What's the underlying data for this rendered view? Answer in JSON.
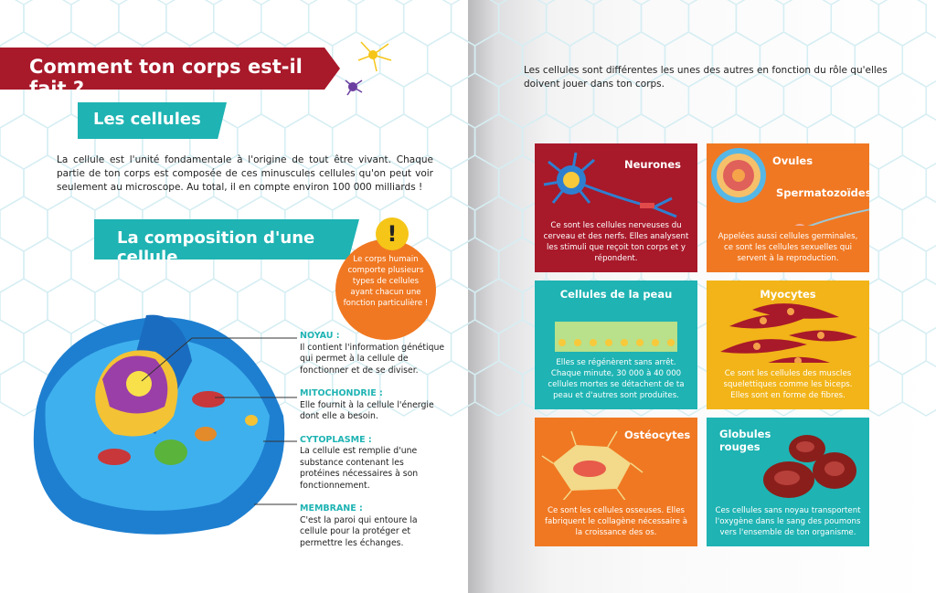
{
  "left_page": {
    "title": "Comment ton corps est-il fait ?",
    "section1": {
      "title": "Les cellules",
      "text": "La cellule est l'unité fondamentale à l'origine de tout être vivant. Chaque partie de ton corps est composée de ces minuscules cellules qu'on peut voir seulement au microscope. Au total, il en compte environ 100 000 milliards !"
    },
    "section2": {
      "title": "La composition d'une cellule"
    },
    "callout": {
      "icon": "exclamation-icon",
      "mark": "!",
      "text": "Le corps humain comporte plusieurs types de cellules ayant chacun une fonction particulière !"
    },
    "labels": [
      {
        "title": "NOYAU :",
        "text": "Il contient l'information génétique qui permet à la cellule de fonctionner et de se diviser."
      },
      {
        "title": "MITOCHONDRIE :",
        "text": "Elle fournit à la cellule l'énergie dont elle a besoin."
      },
      {
        "title": "CYTOPLASME :",
        "text": "La cellule est remplie d'une substance contenant les protéines nécessaires à son fonctionnement."
      },
      {
        "title": "MEMBRANE :",
        "text": "C'est la paroi qui entoure la cellule pour la protéger et permettre les échanges."
      }
    ]
  },
  "right_page": {
    "intro": "Les cellules sont différentes les unes des autres en fonction du rôle qu'elles doivent jouer dans ton corps.",
    "cards": [
      {
        "title": "Neurones",
        "text": "Ce sont les cellules nerveuses du cerveau et des nerfs. Elles analysent les stimuli que reçoit ton corps et y répondent.",
        "color": "#a8192a"
      },
      {
        "title": "Ovules",
        "title2": "Spermatozoïdes",
        "text": "Appelées aussi cellules germinales, ce sont les cellules sexuelles qui servent à la reproduction.",
        "color": "#f07822"
      },
      {
        "title": "Cellules de la peau",
        "text": "Elles se régénèrent sans arrêt. Chaque minute, 30 000 à 40 000 cellules mortes se détachent de ta peau et d'autres sont produites.",
        "color": "#1fb3b3"
      },
      {
        "title": "Myocytes",
        "text": "Ce sont les cellules des muscles squelettiques comme les biceps. Elles sont en forme de fibres.",
        "color": "#f2b418"
      },
      {
        "title": "Ostéocytes",
        "text": "Ce sont les cellules osseuses. Elles fabriquent le collagène nécessaire à la croissance des os.",
        "color": "#f07822"
      },
      {
        "title": "Globules rouges",
        "text": "Ces cellules sans noyau transportent l'oxygène dans le sang des poumons vers l'ensemble de ton organisme.",
        "color": "#1fb3b3"
      }
    ]
  }
}
